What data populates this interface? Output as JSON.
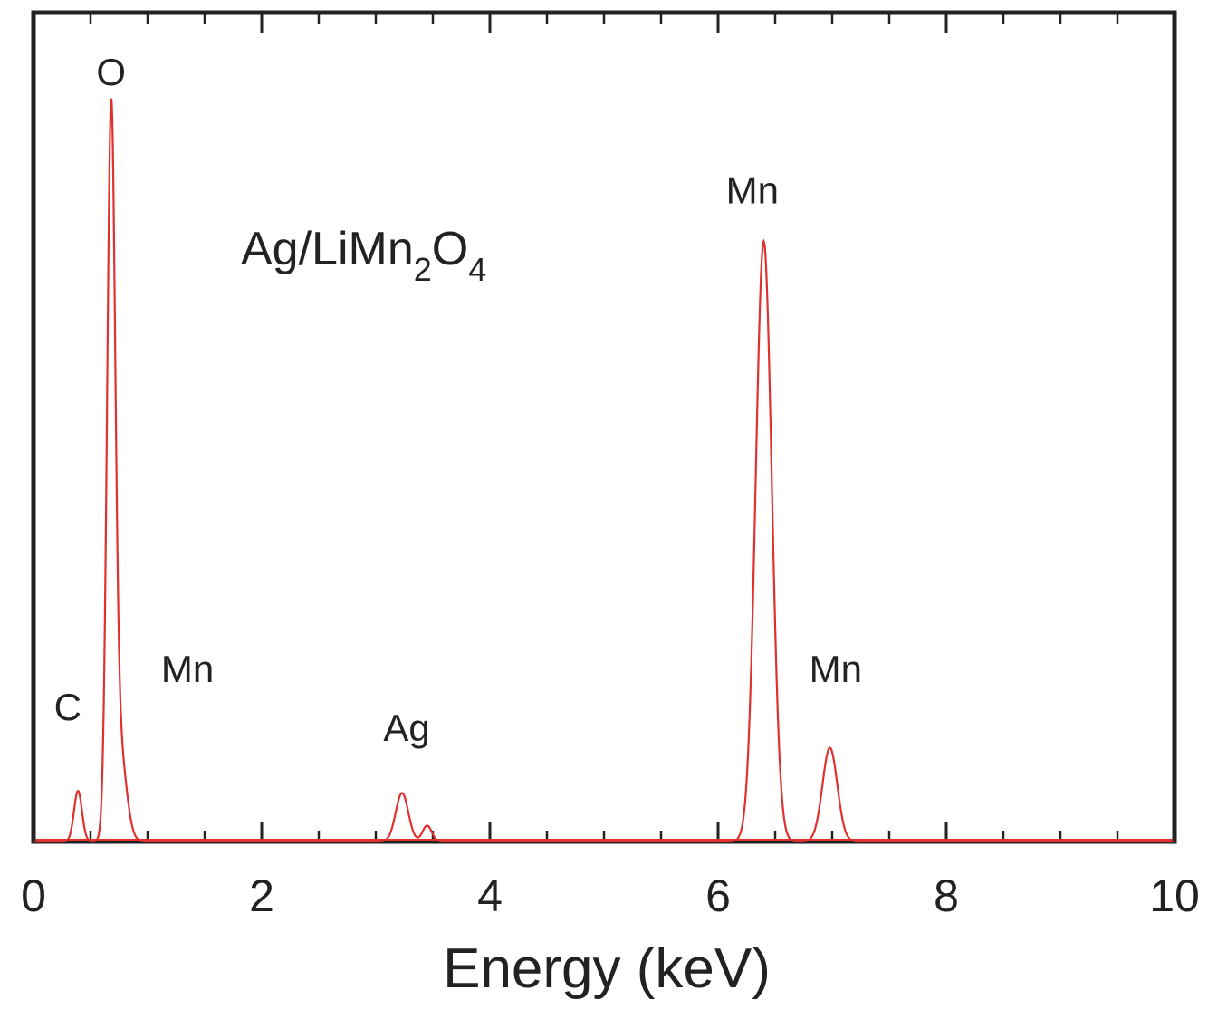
{
  "chart_data": {
    "type": "line",
    "xlabel": "Energy (keV)",
    "ylabel": "",
    "xlim": [
      0,
      10
    ],
    "ylim": [
      0,
      100
    ],
    "x_ticks": [
      "0",
      "2",
      "4",
      "6",
      "8",
      "10"
    ],
    "y_ticks": [],
    "grid": false,
    "legend": "none",
    "line_color": "#e0312f",
    "annotation": {
      "main": "Ag/LiMn",
      "sub1": "2",
      "mid": "O",
      "sub2": "4"
    },
    "peak_labels": [
      {
        "text": "C",
        "x": 0.3,
        "y": 17.5
      },
      {
        "text": "O",
        "x": 0.68,
        "y": 109
      },
      {
        "text": "Mn",
        "x": 1.35,
        "y": 23
      },
      {
        "text": "Ag",
        "x": 3.27,
        "y": 14.5
      },
      {
        "text": "Mn",
        "x": 6.3,
        "y": 92
      },
      {
        "text": "Mn",
        "x": 7.03,
        "y": 23
      }
    ],
    "series": [
      {
        "peaks": [
          {
            "element": "C",
            "energy": 0.39,
            "height": 7.3
          },
          {
            "element": "O",
            "energy": 0.68,
            "height": 100
          },
          {
            "element": "Mn",
            "energy": 0.75,
            "height": 14
          },
          {
            "element": "Ag",
            "energy": 3.23,
            "height": 7
          },
          {
            "element": "Ag",
            "energy": 3.45,
            "height": 2.3
          },
          {
            "element": "Mn",
            "energy": 6.4,
            "height": 86.5
          },
          {
            "element": "Mn",
            "energy": 6.98,
            "height": 13.5
          }
        ]
      }
    ]
  }
}
